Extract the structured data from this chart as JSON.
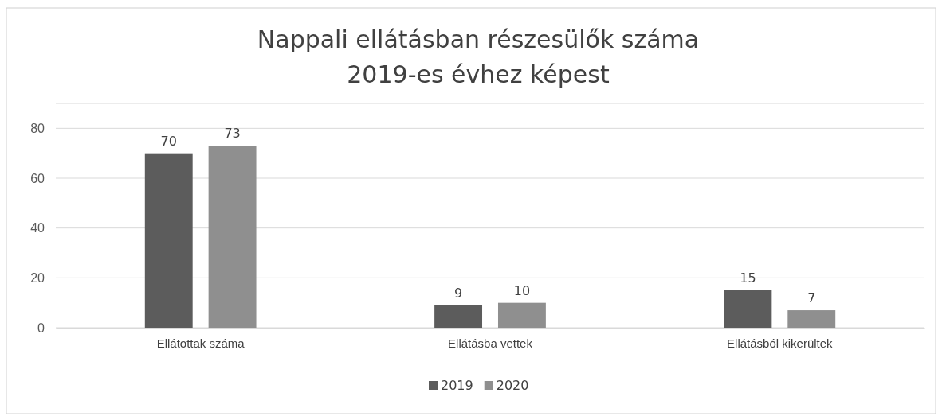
{
  "chart_data": {
    "type": "bar",
    "title": "Nappali ellátásban részesülők száma\n2019-es évhez képest",
    "categories": [
      "Ellátottak száma",
      "Ellátásba vettek",
      "Ellátásból kikerültek"
    ],
    "series": [
      {
        "name": "2019",
        "color": "#5c5c5c",
        "values": [
          70,
          9,
          15
        ]
      },
      {
        "name": "2020",
        "color": "#8f8f8f",
        "values": [
          73,
          10,
          7
        ]
      }
    ],
    "ylim": [
      0,
      90
    ],
    "yticks": [
      0,
      20,
      40,
      60,
      80
    ],
    "grid": "y",
    "legend": "bottom",
    "data_labels": true
  }
}
